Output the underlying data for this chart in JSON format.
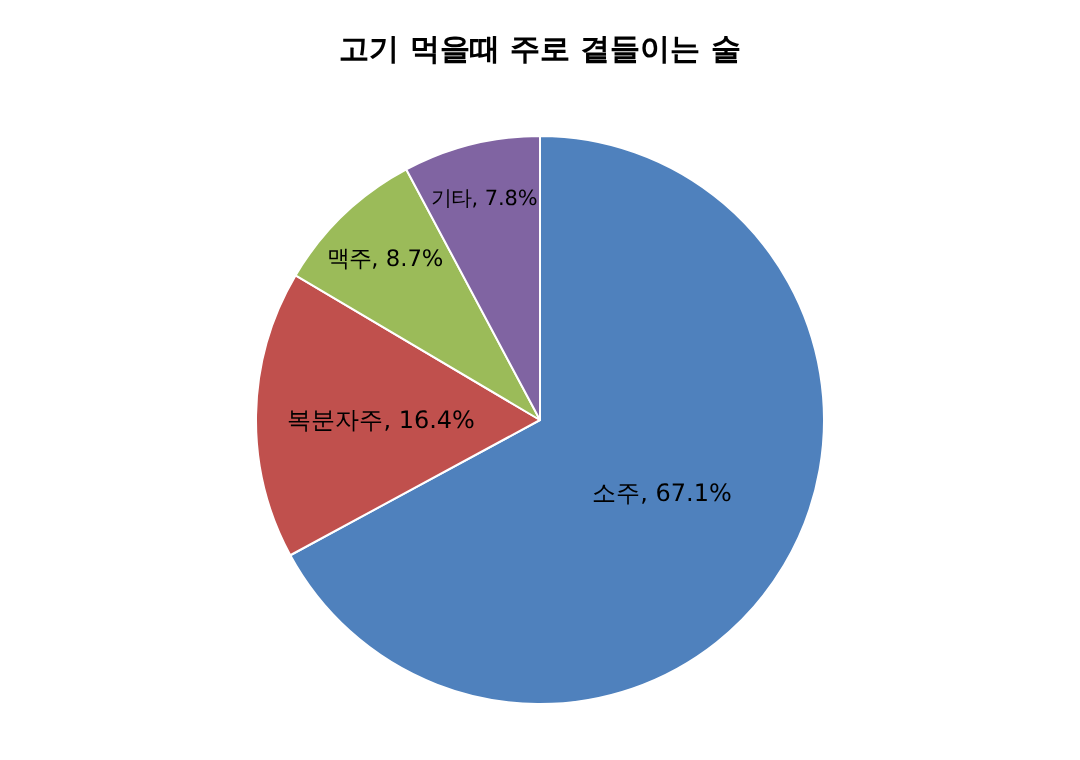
{
  "chart_data": {
    "type": "pie",
    "title": "고기 먹을때 주로 곁들이는 술",
    "categories": [
      "소주",
      "복분자주",
      "맥주",
      "기타"
    ],
    "values": [
      67.1,
      16.4,
      8.7,
      7.8
    ],
    "value_labels": [
      "67.1%",
      "16.4%",
      "8.7%",
      "7.8%"
    ],
    "colors": [
      "#4f81bd",
      "#c0504d",
      "#9bbb59",
      "#8064a2"
    ],
    "legend": false
  }
}
